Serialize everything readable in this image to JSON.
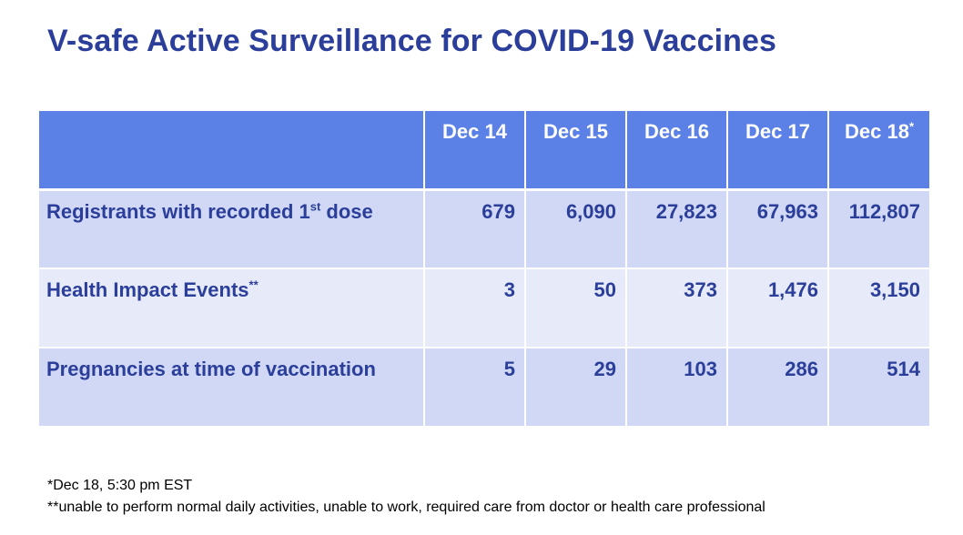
{
  "title": "V-safe Active Surveillance for COVID-19 Vaccines",
  "table": {
    "corner": "",
    "columns": [
      {
        "label": "Dec 14",
        "sup": ""
      },
      {
        "label": "Dec 15",
        "sup": ""
      },
      {
        "label": "Dec 16",
        "sup": ""
      },
      {
        "label": "Dec 17",
        "sup": ""
      },
      {
        "label": "Dec 18",
        "sup": "*"
      }
    ],
    "rows": [
      {
        "label_pre": "Registrants with recorded 1",
        "label_sup": "st",
        "label_post": " dose",
        "values": [
          "679",
          "6,090",
          "27,823",
          "67,963",
          "112,807"
        ]
      },
      {
        "label_pre": "Health Impact Events",
        "label_sup": "**",
        "label_post": "",
        "values": [
          "3",
          "50",
          "373",
          "1,476",
          "3,150"
        ]
      },
      {
        "label_pre": "Pregnancies at time of vaccination",
        "label_sup": "",
        "label_post": "",
        "values": [
          "5",
          "29",
          "103",
          "286",
          "514"
        ]
      }
    ]
  },
  "footnotes": [
    "*Dec 18, 5:30 pm EST",
    "**unable to perform normal daily activities, unable to work, required care from doctor or health care professional"
  ],
  "colors": {
    "title": "#2b3e9a",
    "header_bg": "#5b80e6",
    "row_odd_bg": "#d0d8f5",
    "row_even_bg": "#e7ebf9"
  }
}
